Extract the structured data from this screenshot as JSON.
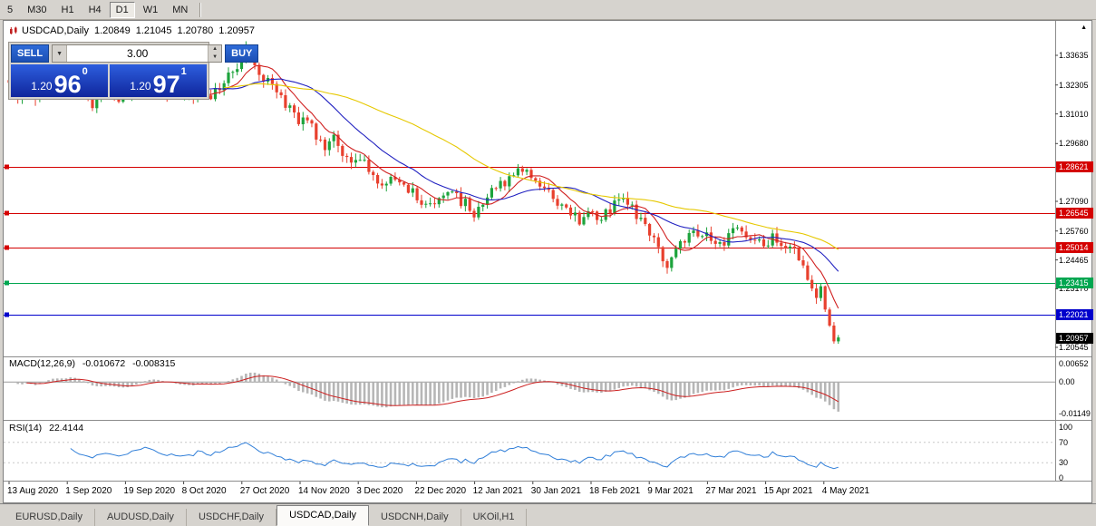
{
  "toolbar": {
    "timeframes": [
      {
        "label": "5",
        "active": false
      },
      {
        "label": "M30",
        "active": false
      },
      {
        "label": "H1",
        "active": false
      },
      {
        "label": "H4",
        "active": false
      },
      {
        "label": "D1",
        "active": true
      },
      {
        "label": "W1",
        "active": false
      },
      {
        "label": "MN",
        "active": false
      }
    ]
  },
  "chart_header": {
    "symbol_title": "USDCAD,Daily",
    "open": "1.20849",
    "high": "1.21045",
    "low": "1.20780",
    "close": "1.20957"
  },
  "trade_panel": {
    "sell_label": "SELL",
    "buy_label": "BUY",
    "volume": "3.00",
    "sell_price": {
      "prefix": "1.20",
      "big": "96",
      "sup": "0"
    },
    "buy_price": {
      "prefix": "1.20",
      "big": "97",
      "sup": "1"
    }
  },
  "icons": {
    "dropdown_arrow": "▼",
    "spinner_up": "▲",
    "spinner_down": "▼",
    "axis_marker": "▲"
  },
  "price_axis": {
    "ticks": [
      {
        "text": "1.33635",
        "value": 1.33635
      },
      {
        "text": "1.32305",
        "value": 1.32305
      },
      {
        "text": "1.31010",
        "value": 1.3101
      },
      {
        "text": "1.29680",
        "value": 1.2968
      },
      {
        "text": "1.27090",
        "value": 1.2709
      },
      {
        "text": "1.25760",
        "value": 1.2576
      },
      {
        "text": "1.24465",
        "value": 1.24465
      },
      {
        "text": "1.23170",
        "value": 1.2317
      },
      {
        "text": "1.20545",
        "value": 1.20545
      }
    ],
    "badges": [
      {
        "text": "1.28621",
        "value": 1.28621,
        "color": "#d40000",
        "line": true
      },
      {
        "text": "1.26545",
        "value": 1.26545,
        "color": "#d40000",
        "line": true
      },
      {
        "text": "1.25014",
        "value": 1.25014,
        "color": "#d40000",
        "line": true
      },
      {
        "text": "1.23415",
        "value": 1.23415,
        "color": "#00a650",
        "line": true
      },
      {
        "text": "1.22021",
        "value": 1.22021,
        "color": "#0000cc",
        "line": true
      },
      {
        "text": "1.20957",
        "value": 1.20957,
        "color": "#000000",
        "line": false
      }
    ]
  },
  "macd_panel": {
    "name": "MACD(12,26,9)",
    "value_main": "-0.010672",
    "value_signal": "-0.008315",
    "axis_labels": [
      {
        "text": "0.00652",
        "value": 0.00652
      },
      {
        "text": "0.00",
        "value": 0
      },
      {
        "text": "-0.01149",
        "value": -0.01149
      }
    ]
  },
  "rsi_panel": {
    "name": "RSI(14)",
    "value": "22.4144",
    "axis_labels": [
      {
        "text": "100",
        "value": 100
      },
      {
        "text": "70",
        "value": 70
      },
      {
        "text": "30",
        "value": 30
      },
      {
        "text": "0",
        "value": 0
      }
    ],
    "levels": [
      70,
      30
    ]
  },
  "time_axis": {
    "labels": [
      "13 Aug 2020",
      "1 Sep 2020",
      "19 Sep 2020",
      "8 Oct 2020",
      "27 Oct 2020",
      "14 Nov 2020",
      "3 Dec 2020",
      "22 Dec 2020",
      "12 Jan 2021",
      "30 Jan 2021",
      "18 Feb 2021",
      "9 Mar 2021",
      "27 Mar 2021",
      "15 Apr 2021",
      "4 May 2021"
    ]
  },
  "tabs": [
    {
      "label": "EURUSD,Daily",
      "active": false
    },
    {
      "label": "AUDUSD,Daily",
      "active": false
    },
    {
      "label": "USDCHF,Daily",
      "active": false
    },
    {
      "label": "USDCAD,Daily",
      "active": true
    },
    {
      "label": "USDCNH,Daily",
      "active": false
    },
    {
      "label": "UKOil,H1",
      "active": false
    }
  ],
  "chart_data": {
    "type": "candlestick",
    "symbol": "USDCAD",
    "timeframe": "Daily",
    "last_ohlc": {
      "open": 1.20849,
      "high": 1.21045,
      "low": 1.2078,
      "close": 1.20957
    },
    "visible_price_range": [
      1.20139,
      1.34936
    ],
    "candle_count": 190,
    "keyframes": [
      [
        0,
        1.3225
      ],
      [
        2,
        1.315
      ],
      [
        4,
        1.324
      ],
      [
        6,
        1.3185
      ],
      [
        8,
        1.33
      ],
      [
        10,
        1.333
      ],
      [
        12,
        1.326
      ],
      [
        14,
        1.331
      ],
      [
        16,
        1.3205
      ],
      [
        19,
        1.3135
      ],
      [
        22,
        1.319
      ],
      [
        25,
        1.3145
      ],
      [
        28,
        1.323
      ],
      [
        31,
        1.329
      ],
      [
        34,
        1.3245
      ],
      [
        37,
        1.318
      ],
      [
        40,
        1.3155
      ],
      [
        43,
        1.3215
      ],
      [
        46,
        1.3175
      ],
      [
        49,
        1.324
      ],
      [
        52,
        1.331
      ],
      [
        54,
        1.338
      ],
      [
        56,
        1.333
      ],
      [
        58,
        1.327
      ],
      [
        60,
        1.323
      ],
      [
        62,
        1.318
      ],
      [
        64,
        1.312
      ],
      [
        66,
        1.306
      ],
      [
        68,
        1.309
      ],
      [
        70,
        1.301
      ],
      [
        72,
        1.296
      ],
      [
        74,
        1.299
      ],
      [
        76,
        1.293
      ],
      [
        78,
        1.288
      ],
      [
        80,
        1.291
      ],
      [
        82,
        1.2845
      ],
      [
        84,
        1.2795
      ],
      [
        86,
        1.2765
      ],
      [
        88,
        1.283
      ],
      [
        90,
        1.2795
      ],
      [
        92,
        1.275
      ],
      [
        94,
        1.2712
      ],
      [
        96,
        1.2682
      ],
      [
        98,
        1.2722
      ],
      [
        100,
        1.2762
      ],
      [
        102,
        1.2726
      ],
      [
        104,
        1.27
      ],
      [
        106,
        1.2652
      ],
      [
        108,
        1.27
      ],
      [
        110,
        1.2748
      ],
      [
        112,
        1.2782
      ],
      [
        114,
        1.2822
      ],
      [
        116,
        1.2864
      ],
      [
        118,
        1.284
      ],
      [
        120,
        1.28
      ],
      [
        122,
        1.2762
      ],
      [
        124,
        1.2722
      ],
      [
        126,
        1.2682
      ],
      [
        128,
        1.2642
      ],
      [
        130,
        1.2626
      ],
      [
        132,
        1.2662
      ],
      [
        134,
        1.2622
      ],
      [
        136,
        1.2652
      ],
      [
        138,
        1.2692
      ],
      [
        140,
        1.2712
      ],
      [
        142,
        1.2682
      ],
      [
        144,
        1.2622
      ],
      [
        146,
        1.2562
      ],
      [
        148,
        1.2492
      ],
      [
        150,
        1.2432
      ],
      [
        152,
        1.2472
      ],
      [
        154,
        1.2542
      ],
      [
        156,
        1.2576
      ],
      [
        158,
        1.2532
      ],
      [
        160,
        1.2556
      ],
      [
        162,
        1.2512
      ],
      [
        164,
        1.2552
      ],
      [
        166,
        1.2592
      ],
      [
        168,
        1.2562
      ],
      [
        170,
        1.2532
      ],
      [
        172,
        1.2502
      ],
      [
        174,
        1.2542
      ],
      [
        176,
        1.2498
      ],
      [
        178,
        1.2512
      ],
      [
        180,
        1.2462
      ],
      [
        182,
        1.2372
      ],
      [
        184,
        1.2292
      ],
      [
        185,
        1.2325
      ],
      [
        186,
        1.2228
      ],
      [
        187,
        1.2148
      ],
      [
        188,
        1.20849
      ],
      [
        189,
        1.20957
      ]
    ],
    "colors": {
      "up": "#1da33c",
      "down": "#e8402e",
      "macd_histogram": "#b6b6b6",
      "macd_signal": "#cc2020",
      "rsi": "#2f7ed8"
    },
    "moving_averages": [
      {
        "period": 8,
        "color": "#d02020"
      },
      {
        "period": 20,
        "color": "#2020c0"
      },
      {
        "period": 50,
        "color": "#e6c800"
      }
    ],
    "indicators": {
      "macd": {
        "fast": 12,
        "slow": 26,
        "signal": 9,
        "main_value": -0.010672,
        "signal_value": -0.008315
      },
      "rsi": {
        "period": 14,
        "value": 22.4144
      }
    }
  }
}
